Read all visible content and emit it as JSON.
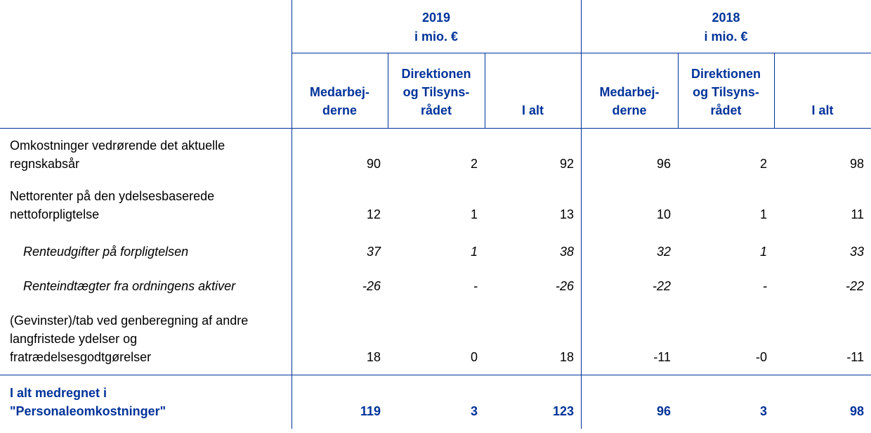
{
  "header": {
    "years": [
      {
        "year": "2019",
        "unit": "i mio. €"
      },
      {
        "year": "2018",
        "unit": "i mio. €"
      }
    ],
    "columns": [
      [
        "Medarbej-\nderne",
        "Direktionen\nog Tilsyns-\nrådet",
        "I alt"
      ],
      [
        "Medarbej-\nderne",
        "Direktionen\nog Tilsyns-\nrådet",
        "I alt"
      ]
    ]
  },
  "table": {
    "rows": [
      {
        "label": "Omkostninger vedrørende det aktuelle\nregnskabsår",
        "values": [
          "90",
          "2",
          "92",
          "96",
          "2",
          "98"
        ]
      },
      {
        "label": "Nettorenter på den ydelsesbaserede\nnettoforpligtelse",
        "values": [
          "12",
          "1",
          "13",
          "10",
          "1",
          "11"
        ]
      },
      {
        "label": "Renteudgifter på forpligtelsen",
        "values": [
          "37",
          "1",
          "38",
          "32",
          "1",
          "33"
        ],
        "italic": true
      },
      {
        "label": "Renteindtægter fra ordningens aktiver",
        "values": [
          "-26",
          "-",
          "-26",
          "-22",
          "-",
          "-22"
        ],
        "italic": true
      },
      {
        "label": "(Gevinster)/tab ved genberegning af andre\nlangfristede ydelser og\nfratrædelsesgodtgørelser",
        "values": [
          "18",
          "0",
          "18",
          "-11",
          "-0",
          "-11"
        ]
      },
      {
        "label": "I alt medregnet i\n\"Personaleomkostninger\"",
        "values": [
          "119",
          "3",
          "123",
          "96",
          "3",
          "98"
        ],
        "total": true
      }
    ]
  }
}
